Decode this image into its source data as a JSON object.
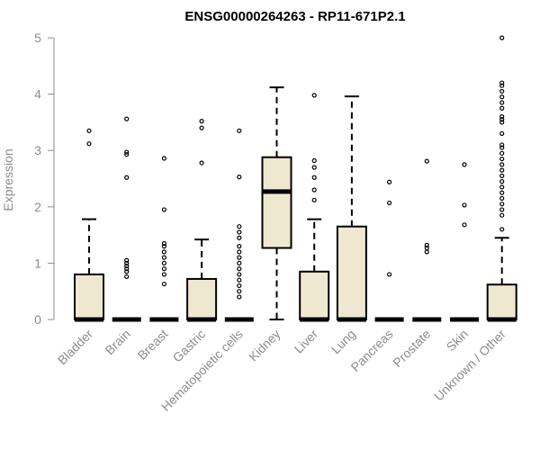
{
  "colors": {
    "box_fill": "#efe8d1",
    "axis": "#8c8c8c",
    "ink": "#000000"
  },
  "chart_data": {
    "type": "boxplot",
    "title": "ENSG00000264263 - RP11-671P2.1",
    "xlabel": "",
    "ylabel": "Expression",
    "ylim": [
      0,
      5
    ],
    "yticks": [
      0,
      1,
      2,
      3,
      4,
      5
    ],
    "grid": false,
    "categories": [
      "Bladder",
      "Brain",
      "Breast",
      "Gastric",
      "Hematopoietic cells",
      "Kidney",
      "Liver",
      "Lung",
      "Pancreas",
      "Prostate",
      "Skin",
      "Unknown / Other"
    ],
    "boxes": [
      {
        "category": "Bladder",
        "q1": 0,
        "median": 0,
        "q3": 0.8,
        "whisker_low": 0,
        "whisker_high": 1.78,
        "outliers": [
          3.12,
          3.35
        ]
      },
      {
        "category": "Brain",
        "q1": 0,
        "median": 0,
        "q3": 0,
        "whisker_low": 0,
        "whisker_high": 0,
        "outliers": [
          0.76,
          0.85,
          0.9,
          0.95,
          1.0,
          1.05,
          2.52,
          2.93,
          2.97,
          3.56
        ]
      },
      {
        "category": "Breast",
        "q1": 0,
        "median": 0,
        "q3": 0,
        "whisker_low": 0,
        "whisker_high": 0,
        "outliers": [
          0.63,
          0.8,
          0.9,
          1.0,
          1.1,
          1.2,
          1.3,
          1.35,
          1.95,
          2.86
        ]
      },
      {
        "category": "Gastric",
        "q1": 0,
        "median": 0,
        "q3": 0.72,
        "whisker_low": 0,
        "whisker_high": 1.42,
        "outliers": [
          2.78,
          3.4,
          3.52
        ]
      },
      {
        "category": "Hematopoietic cells",
        "q1": 0,
        "median": 0,
        "q3": 0,
        "whisker_low": 0,
        "whisker_high": 0,
        "outliers": [
          0.4,
          0.5,
          0.6,
          0.7,
          0.8,
          0.9,
          1.0,
          1.1,
          1.2,
          1.3,
          1.45,
          1.55,
          1.65,
          2.53,
          3.35
        ]
      },
      {
        "category": "Kidney",
        "q1": 1.27,
        "median": 2.27,
        "q3": 2.88,
        "whisker_low": 0,
        "whisker_high": 4.12,
        "outliers": []
      },
      {
        "category": "Liver",
        "q1": 0,
        "median": 0,
        "q3": 0.85,
        "whisker_low": 0,
        "whisker_high": 1.78,
        "outliers": [
          2.12,
          2.3,
          2.52,
          2.7,
          2.82,
          3.98
        ]
      },
      {
        "category": "Lung",
        "q1": 0,
        "median": 0,
        "q3": 1.65,
        "whisker_low": 0,
        "whisker_high": 3.96,
        "outliers": []
      },
      {
        "category": "Pancreas",
        "q1": 0,
        "median": 0,
        "q3": 0,
        "whisker_low": 0,
        "whisker_high": 0,
        "outliers": [
          0.8,
          2.07,
          2.44
        ]
      },
      {
        "category": "Prostate",
        "q1": 0,
        "median": 0,
        "q3": 0,
        "whisker_low": 0,
        "whisker_high": 0,
        "outliers": [
          1.2,
          1.27,
          1.32,
          2.81
        ]
      },
      {
        "category": "Skin",
        "q1": 0,
        "median": 0,
        "q3": 0,
        "whisker_low": 0,
        "whisker_high": 0,
        "outliers": [
          1.68,
          2.03,
          2.75
        ]
      },
      {
        "category": "Unknown / Other",
        "q1": 0,
        "median": 0,
        "q3": 0.62,
        "whisker_low": 0,
        "whisker_high": 1.45,
        "outliers": [
          1.6,
          1.85,
          1.95,
          2.05,
          2.15,
          2.25,
          2.35,
          2.45,
          2.55,
          2.65,
          2.75,
          2.85,
          2.95,
          3.05,
          3.1,
          3.3,
          3.5,
          3.55,
          3.6,
          3.75,
          3.85,
          3.95,
          4.05,
          4.15,
          4.2,
          5.0
        ]
      }
    ]
  }
}
